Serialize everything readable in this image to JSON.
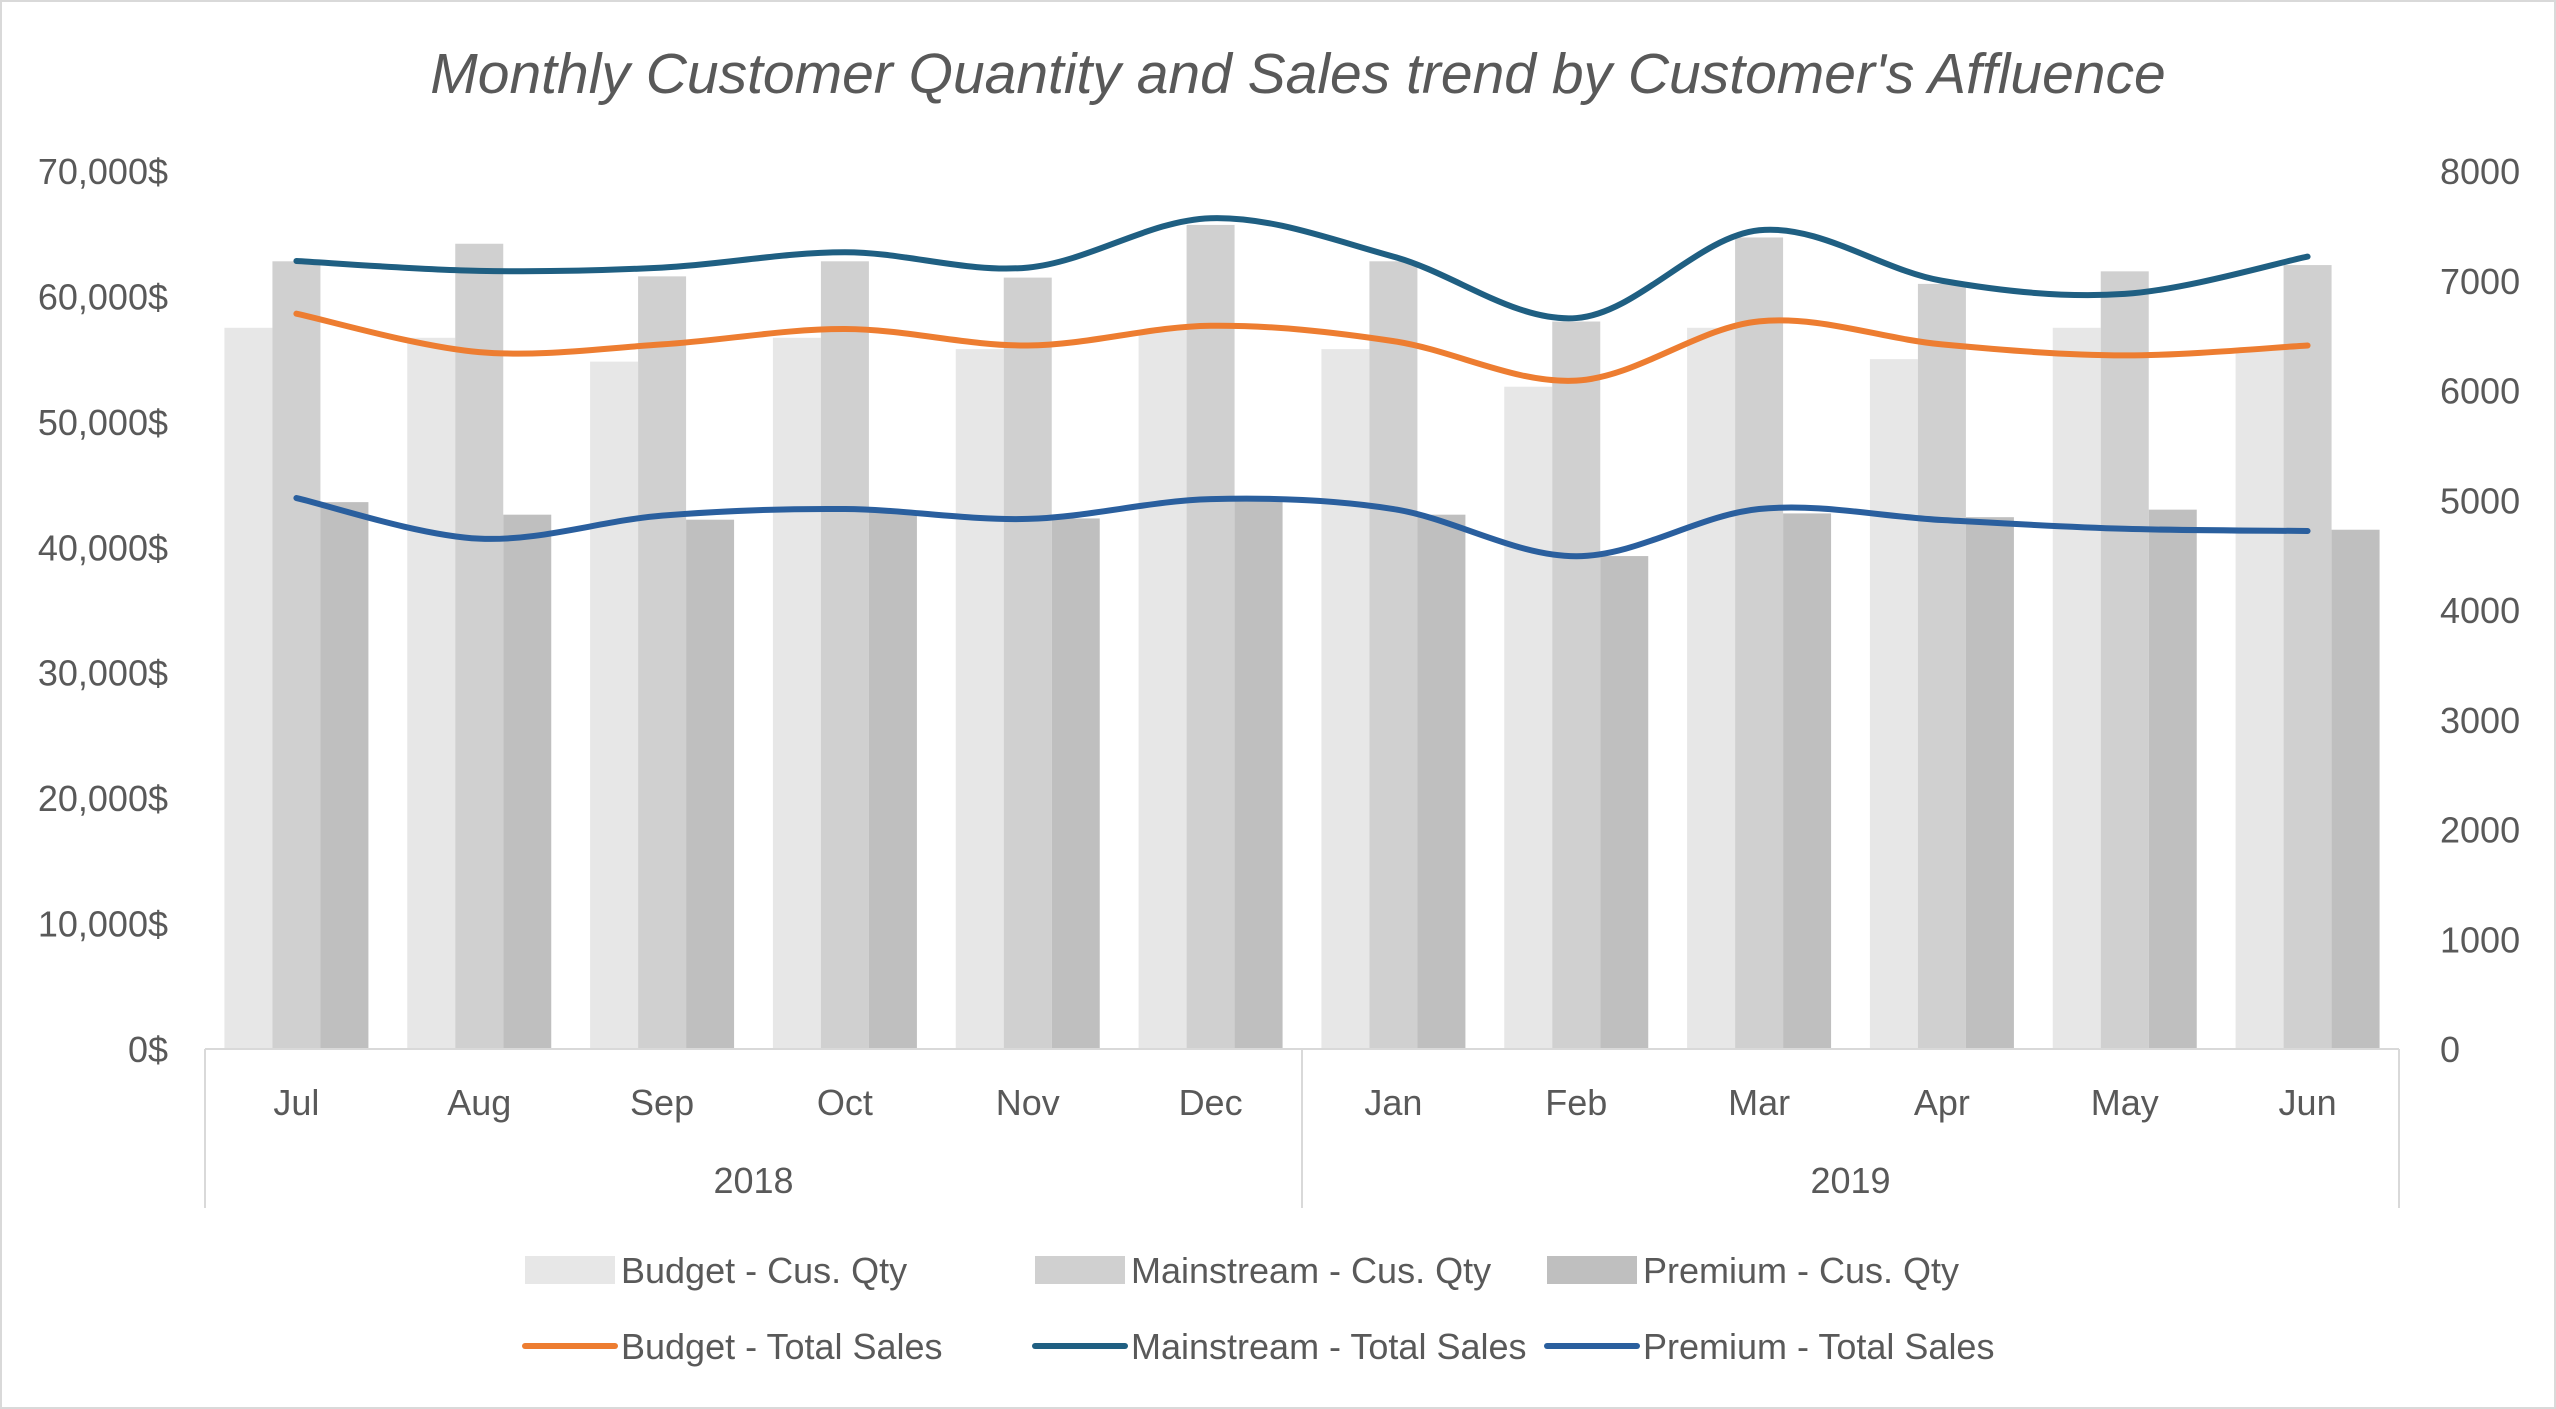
{
  "chart_data": {
    "type": "bar",
    "title": "Monthly Customer Quantity and Sales trend by Customer's Affluence",
    "categories": [
      "Jul",
      "Aug",
      "Sep",
      "Oct",
      "Nov",
      "Dec",
      "Jan",
      "Feb",
      "Mar",
      "Apr",
      "May",
      "Jun"
    ],
    "groups": [
      {
        "label": "2018",
        "categories": [
          "Jul",
          "Aug",
          "Sep",
          "Oct",
          "Nov",
          "Dec"
        ]
      },
      {
        "label": "2019",
        "categories": [
          "Jan",
          "Feb",
          "Mar",
          "Apr",
          "May",
          "Jun"
        ]
      }
    ],
    "y_left": {
      "ylim": [
        0,
        70000
      ],
      "tick_labels": [
        "0$",
        "10,000$",
        "20,000$",
        "30,000$",
        "40,000$",
        "50,000$",
        "60,000$",
        "70,000$"
      ]
    },
    "y_right": {
      "ylim": [
        0,
        8000
      ],
      "tick_labels": [
        "0",
        "1000",
        "2000",
        "3000",
        "4000",
        "5000",
        "6000",
        "7000",
        "8000"
      ]
    },
    "bar_series": [
      {
        "name": "Budget - Cus. Qty",
        "axis": "left",
        "color": "#E7E7E7",
        "values": [
          57500,
          56700,
          54800,
          56700,
          55800,
          57300,
          55800,
          52800,
          57500,
          55000,
          57500,
          55800
        ]
      },
      {
        "name": "Mainstream - Cus. Qty",
        "axis": "left",
        "color": "#D0D0D0",
        "values": [
          62800,
          64200,
          61600,
          62800,
          61500,
          65700,
          62800,
          58000,
          64700,
          61000,
          62000,
          62500
        ]
      },
      {
        "name": "Premium - Cus. Qty",
        "axis": "left",
        "color": "#BFBFBF",
        "values": [
          43600,
          42600,
          42200,
          42900,
          42300,
          43700,
          42600,
          39300,
          42700,
          42400,
          43000,
          41400
        ]
      }
    ],
    "line_series": [
      {
        "name": "Budget - Total Sales",
        "axis": "right",
        "color": "#ED7D31",
        "values": [
          6700,
          6350,
          6420,
          6560,
          6410,
          6590,
          6450,
          6090,
          6630,
          6420,
          6320,
          6410
        ]
      },
      {
        "name": "Mainstream - Total Sales",
        "axis": "right",
        "color": "#1F5F82",
        "values": [
          7180,
          7090,
          7120,
          7260,
          7120,
          7570,
          7220,
          6660,
          7460,
          7000,
          6880,
          7220
        ]
      },
      {
        "name": "Premium - Total Sales",
        "axis": "right",
        "color": "#2A5F9E",
        "values": [
          5020,
          4650,
          4860,
          4920,
          4830,
          5010,
          4920,
          4490,
          4920,
          4820,
          4740,
          4720
        ]
      }
    ],
    "grid": false,
    "legend_position": "bottom"
  }
}
